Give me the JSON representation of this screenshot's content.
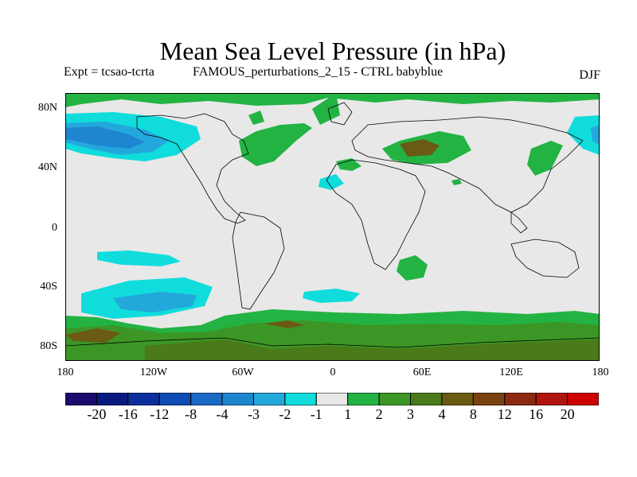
{
  "title": "Mean Sea Level Pressure (in hPa)",
  "subtitle_left": "Expt = tcsao-tcrta",
  "subtitle_mid": "FAMOUS_perturbations_2_15 - CTRL babyblue",
  "season": "DJF",
  "lat_labels": [
    "80N",
    "40N",
    "0",
    "40S",
    "80S"
  ],
  "lon_labels": [
    "180",
    "120W",
    "60W",
    "0",
    "60E",
    "120E",
    "180"
  ],
  "colorbar": {
    "colors": [
      "#1c0a6e",
      "#081a80",
      "#0a2f9c",
      "#0d4cb2",
      "#1a69c4",
      "#1e86d0",
      "#23a8dc",
      "#10dcdc",
      "#e8e8e8",
      "#23b343",
      "#3c9626",
      "#4a7a1a",
      "#6a5a14",
      "#7a4210",
      "#8c2a10",
      "#b0140c",
      "#cc0000"
    ],
    "labels": [
      "-20",
      "-16",
      "-12",
      "-8",
      "-4",
      "-3",
      "-2",
      "-1",
      "1",
      "2",
      "3",
      "4",
      "8",
      "12",
      "16",
      "20"
    ]
  },
  "map_legend_values": {
    "neutral": "#e8e8e8",
    "light_blue": "#10dcdc",
    "mid_blue": "#23a8dc",
    "dark_blue": "#1e86d0",
    "light_green": "#23b343",
    "mid_green": "#3c9626",
    "dark_green": "#4a7a1a",
    "brown": "#6a5a14"
  }
}
